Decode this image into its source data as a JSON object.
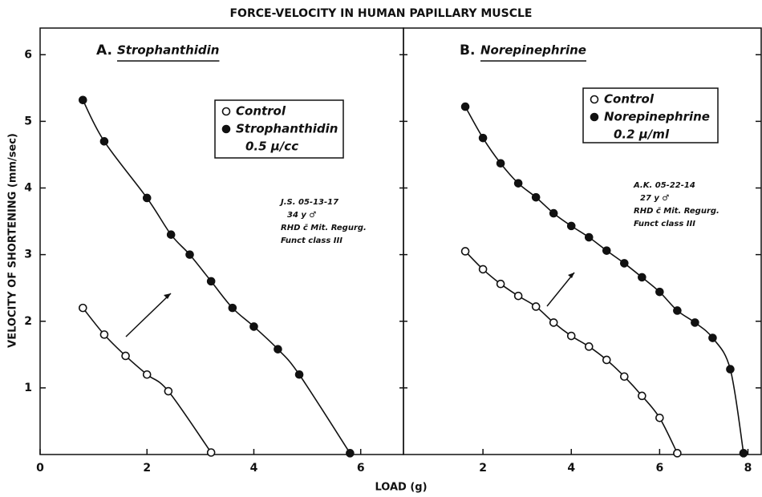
{
  "title": "FORCE-VELOCITY IN HUMAN PAPILLARY MUSCLE",
  "ylabel": "VELOCITY OF SHORTENING (mm/sec)",
  "xlabel": "LOAD (g)",
  "ylim": [
    0,
    6.4
  ],
  "yticks": [
    1,
    2,
    3,
    4,
    5,
    6
  ],
  "chart_data": [
    {
      "type": "line",
      "panel_label": "A.",
      "panel_title": "Strophanthidin",
      "xlim": [
        0,
        6.8
      ],
      "xticks": [
        0,
        2,
        4,
        6
      ],
      "annotation": [
        "J.S. 05-13-17",
        "34 y ♂",
        "RHD c̄ Mit. Regurg.",
        "Funct class III"
      ],
      "series": [
        {
          "name": "Control",
          "marker": "open",
          "color": "#111",
          "x": [
            0.8,
            1.2,
            1.6,
            2.0,
            2.4,
            3.2
          ],
          "values": [
            2.2,
            1.8,
            1.48,
            1.2,
            0.95,
            0.03
          ]
        },
        {
          "name": "Strophanthidin",
          "subname": "0.5 µ/cc",
          "marker": "filled",
          "color": "#111",
          "x": [
            0.8,
            1.2,
            2.0,
            2.45,
            2.8,
            3.2,
            3.6,
            4.0,
            4.45,
            4.85,
            5.8
          ],
          "values": [
            5.32,
            4.7,
            3.85,
            3.3,
            3.0,
            2.6,
            2.2,
            1.92,
            1.58,
            1.2,
            0.02
          ]
        }
      ]
    },
    {
      "type": "line",
      "panel_label": "B.",
      "panel_title": "Norepinephrine",
      "xlim": [
        0.2,
        8.3
      ],
      "xticks": [
        2,
        4,
        6,
        8
      ],
      "annotation": [
        "A.K. 05-22-14",
        "27 y ♂",
        "RHD c̄ Mit. Regurg.",
        "Funct class III"
      ],
      "series": [
        {
          "name": "Control",
          "marker": "open",
          "color": "#111",
          "x": [
            1.6,
            2.0,
            2.4,
            2.8,
            3.2,
            3.6,
            4.0,
            4.4,
            4.8,
            5.2,
            5.6,
            6.0,
            6.4
          ],
          "values": [
            3.05,
            2.78,
            2.56,
            2.38,
            2.22,
            1.98,
            1.78,
            1.62,
            1.42,
            1.17,
            0.88,
            0.55,
            0.02
          ]
        },
        {
          "name": "Norepinephrine",
          "subname": "0.2 µ/ml",
          "marker": "filled",
          "color": "#111",
          "x": [
            1.6,
            2.0,
            2.4,
            2.8,
            3.2,
            3.6,
            4.0,
            4.4,
            4.8,
            5.2,
            5.6,
            6.0,
            6.4,
            6.8,
            7.2,
            7.6,
            7.9
          ],
          "values": [
            5.22,
            4.75,
            4.37,
            4.07,
            3.86,
            3.62,
            3.43,
            3.26,
            3.06,
            2.87,
            2.66,
            2.44,
            2.16,
            1.98,
            1.75,
            1.28,
            0.02
          ]
        }
      ]
    }
  ]
}
